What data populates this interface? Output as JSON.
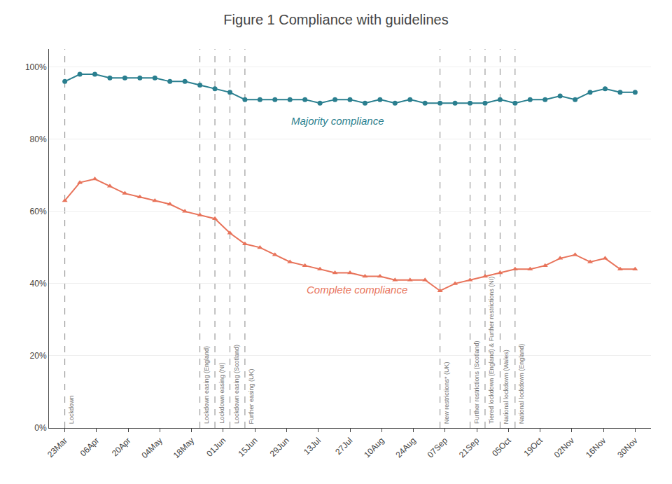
{
  "chart_data": {
    "type": "line",
    "title": "Figure 1 Compliance with guidelines",
    "x": [
      0,
      0.473684,
      0.947368,
      1.421053,
      1.894737,
      2.368421,
      2.842105,
      3.315789,
      3.789474,
      4.263158,
      4.736842,
      5.210526,
      5.684211,
      6.157895,
      6.631579,
      7.105263,
      7.578947,
      8.052632,
      8.526316,
      9,
      9.473684,
      9.947368,
      10.421053,
      10.894737,
      11.368421,
      11.842105,
      12.315789,
      12.789474,
      13.263158,
      13.736842,
      14.210526,
      14.684211,
      15.157895,
      15.631579,
      16.105263,
      16.578947,
      17.052632,
      17.526316,
      18
    ],
    "xlim": [
      -0.5,
      18.5
    ],
    "xticks": [
      {
        "value": 0,
        "label": "23Mar"
      },
      {
        "value": 1,
        "label": "06Apr"
      },
      {
        "value": 2,
        "label": "20Apr"
      },
      {
        "value": 3,
        "label": "04May"
      },
      {
        "value": 4,
        "label": "18May"
      },
      {
        "value": 5,
        "label": "01Jun"
      },
      {
        "value": 6,
        "label": "15Jun"
      },
      {
        "value": 7,
        "label": "29Jun"
      },
      {
        "value": 8,
        "label": "13Jul"
      },
      {
        "value": 9,
        "label": "27Jul"
      },
      {
        "value": 10,
        "label": "10Aug"
      },
      {
        "value": 11,
        "label": "24Aug"
      },
      {
        "value": 12,
        "label": "07Sep"
      },
      {
        "value": 13,
        "label": "21Sep"
      },
      {
        "value": 14,
        "label": "05Oct"
      },
      {
        "value": 15,
        "label": "19Oct"
      },
      {
        "value": 16,
        "label": "02Nov"
      },
      {
        "value": 17,
        "label": "16Nov"
      },
      {
        "value": 18,
        "label": "30Nov"
      }
    ],
    "ylim": [
      0,
      105
    ],
    "yticks": [
      {
        "value": 0,
        "label": "0%"
      },
      {
        "value": 20,
        "label": "20%"
      },
      {
        "value": 40,
        "label": "40%"
      },
      {
        "value": 60,
        "label": "60%"
      },
      {
        "value": 80,
        "label": "80%"
      },
      {
        "value": 100,
        "label": "100%"
      }
    ],
    "grid": "y",
    "series": [
      {
        "name": "Majority compliance",
        "color": "#2a7f8f",
        "marker": "circle",
        "line_style": "solid",
        "values": [
          96,
          98,
          98,
          97,
          97,
          97,
          97,
          96,
          96,
          95,
          94,
          93,
          91,
          91,
          91,
          91,
          91,
          90,
          91,
          91,
          90,
          91,
          90,
          91,
          90,
          90,
          90,
          90,
          90,
          91,
          90,
          91,
          91,
          92,
          91,
          93,
          94,
          93,
          93
        ]
      },
      {
        "name": "Complete compliance",
        "color": "#e8735a",
        "marker": "triangle-up",
        "line_style": "solid",
        "values": [
          63,
          68,
          69,
          67,
          65,
          64,
          63,
          62,
          60,
          59,
          58,
          54,
          51,
          50,
          48,
          46,
          45,
          44,
          43,
          43,
          42,
          42,
          41,
          41,
          41,
          38,
          40,
          41,
          42,
          43,
          44,
          44,
          45,
          47,
          48,
          46,
          47,
          44,
          44
        ]
      }
    ],
    "annotations": [
      {
        "x": 0,
        "text": "Lockdown"
      },
      {
        "x": 4.263158,
        "text": "Lockdown easing (England)"
      },
      {
        "x": 4.736842,
        "text": "Lockdown easing (NI)"
      },
      {
        "x": 5.210526,
        "text": "Lockdown easing (Scotland)"
      },
      {
        "x": 5.684211,
        "text": "Further easing (UK)"
      },
      {
        "x": 11.842105,
        "text": "New restrictions* (UK)"
      },
      {
        "x": 12.789474,
        "text": "Further restrictions (Scotland)"
      },
      {
        "x": 13.263158,
        "text": "Tiered lockdown (England) & Further restrictions (NI)"
      },
      {
        "x": 13.736842,
        "text": "National lockdown (Wales)"
      },
      {
        "x": 14.210526,
        "text": "National lockdown (England)"
      }
    ]
  }
}
